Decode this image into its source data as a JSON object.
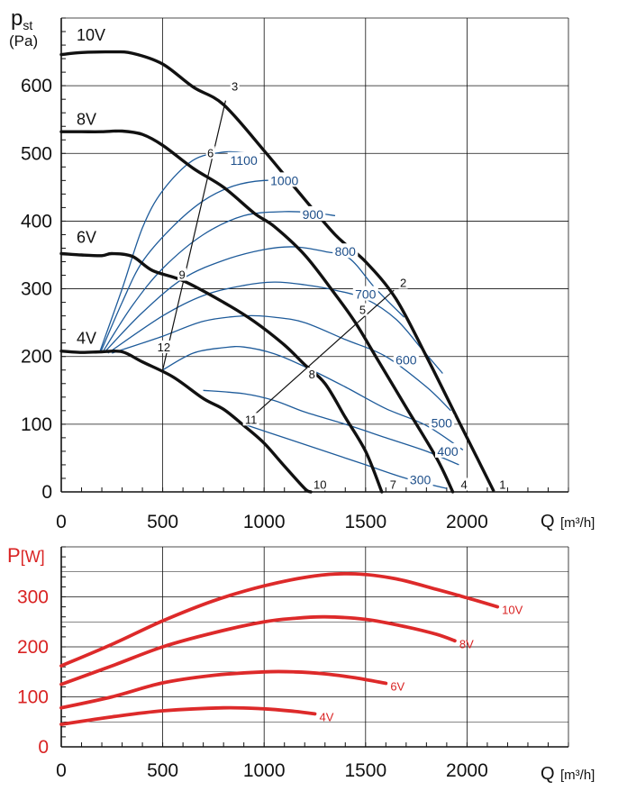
{
  "colors": {
    "fan": "#111111",
    "iso": "#1e5b9a",
    "power": "#dd2a2a",
    "power_text": "#d92323",
    "grid": "#111111"
  },
  "chart_data": [
    {
      "type": "line",
      "title": "",
      "ylabel_main": "p",
      "ylabel_sub": "st",
      "ylabel_unit": "(Pa)",
      "xlabel": "Q",
      "xlabel_unit": "[m³/h]",
      "xlim": [
        0,
        2500
      ],
      "ylim": [
        0,
        700
      ],
      "x_ticks": [
        0,
        500,
        1000,
        1500,
        2000
      ],
      "y_ticks": [
        0,
        100,
        200,
        300,
        400,
        500,
        600
      ],
      "grid": true,
      "fan_curves": [
        {
          "name": "10V",
          "points": [
            [
              0,
              646
            ],
            [
              100,
              649
            ],
            [
              250,
              650
            ],
            [
              350,
              648
            ],
            [
              500,
              632
            ],
            [
              650,
              598
            ],
            [
              800,
              572
            ],
            [
              1000,
              504
            ],
            [
              1150,
              450
            ],
            [
              1350,
              380
            ],
            [
              1500,
              340
            ],
            [
              1650,
              285
            ],
            [
              1800,
              200
            ],
            [
              1950,
              110
            ],
            [
              2050,
              50
            ],
            [
              2130,
              2
            ]
          ]
        },
        {
          "name": "8V",
          "points": [
            [
              0,
              532
            ],
            [
              100,
              532
            ],
            [
              200,
              532
            ],
            [
              300,
              533
            ],
            [
              400,
              528
            ],
            [
              500,
              512
            ],
            [
              650,
              478
            ],
            [
              800,
              450
            ],
            [
              950,
              412
            ],
            [
              1050,
              392
            ],
            [
              1200,
              350
            ],
            [
              1350,
              292
            ],
            [
              1450,
              250
            ],
            [
              1550,
              200
            ],
            [
              1700,
              125
            ],
            [
              1850,
              50
            ],
            [
              1930,
              0
            ]
          ]
        },
        {
          "name": "6V",
          "points": [
            [
              0,
              352
            ],
            [
              100,
              350
            ],
            [
              200,
              349
            ],
            [
              250,
              352
            ],
            [
              350,
              348
            ],
            [
              450,
              327
            ],
            [
              600,
              312
            ],
            [
              800,
              280
            ],
            [
              950,
              252
            ],
            [
              1100,
              217
            ],
            [
              1200,
              188
            ],
            [
              1300,
              160
            ],
            [
              1400,
              110
            ],
            [
              1500,
              60
            ],
            [
              1580,
              0
            ]
          ]
        },
        {
          "name": "4V",
          "points": [
            [
              0,
              208
            ],
            [
              100,
              206
            ],
            [
              200,
              207
            ],
            [
              300,
              207
            ],
            [
              400,
              192
            ],
            [
              550,
              170
            ],
            [
              700,
              138
            ],
            [
              800,
              122
            ],
            [
              900,
              98
            ],
            [
              1000,
              72
            ],
            [
              1100,
              38
            ],
            [
              1200,
              5
            ],
            [
              1230,
              0
            ]
          ]
        }
      ],
      "curve_labels": [
        "10V",
        "8V",
        "6V",
        "4V"
      ],
      "curve_label_anchors": [
        [
          40,
          675
        ],
        [
          40,
          550
        ],
        [
          40,
          376
        ],
        [
          40,
          227
        ]
      ],
      "point_labels": [
        {
          "label": "1",
          "x": 2140,
          "y": 2
        },
        {
          "label": "2",
          "x": 1650,
          "y": 300
        },
        {
          "label": "3",
          "x": 820,
          "y": 590
        },
        {
          "label": "4",
          "x": 1950,
          "y": 2
        },
        {
          "label": "5",
          "x": 1450,
          "y": 260
        },
        {
          "label": "6",
          "x": 700,
          "y": 492
        },
        {
          "label": "7",
          "x": 1600,
          "y": 2
        },
        {
          "label": "8",
          "x": 1200,
          "y": 165
        },
        {
          "label": "9",
          "x": 560,
          "y": 312
        },
        {
          "label": "10",
          "x": 1240,
          "y": 2
        },
        {
          "label": "11",
          "x": 900,
          "y": 98
        },
        {
          "label": "12",
          "x": 470,
          "y": 205
        }
      ],
      "system_lines": [
        {
          "points": [
            [
              500,
              180
            ],
            [
              810,
              578
            ]
          ]
        },
        {
          "points": [
            [
              900,
              100
            ],
            [
              1640,
              298
            ]
          ]
        }
      ],
      "rpm_curves": [
        {
          "label": "1100",
          "label_at": [
            900,
            490
          ],
          "points": [
            [
              190,
              207
            ],
            [
              300,
              300
            ],
            [
              400,
              390
            ],
            [
              500,
              445
            ],
            [
              650,
              490
            ],
            [
              800,
              502
            ],
            [
              900,
              501
            ]
          ]
        },
        {
          "label": "1000",
          "label_at": [
            1100,
            460
          ],
          "points": [
            [
              195,
              207
            ],
            [
              300,
              280
            ],
            [
              400,
              340
            ],
            [
              550,
              392
            ],
            [
              700,
              430
            ],
            [
              850,
              452
            ],
            [
              1000,
              460
            ],
            [
              1150,
              458
            ]
          ]
        },
        {
          "label": "900",
          "label_at": [
            1240,
            410
          ],
          "points": [
            [
              205,
              207
            ],
            [
              350,
              275
            ],
            [
              500,
              330
            ],
            [
              700,
              380
            ],
            [
              900,
              408
            ],
            [
              1100,
              414
            ],
            [
              1250,
              412
            ],
            [
              1350,
              408
            ]
          ]
        },
        {
          "label": "800",
          "label_at": [
            1400,
            355
          ],
          "points": [
            [
              215,
              207
            ],
            [
              400,
              265
            ],
            [
              600,
              315
            ],
            [
              800,
              342
            ],
            [
              1000,
              358
            ],
            [
              1150,
              362
            ],
            [
              1300,
              355
            ],
            [
              1420,
              345
            ],
            [
              1550,
              300
            ],
            [
              1690,
              258
            ]
          ]
        },
        {
          "label": "700",
          "label_at": [
            1500,
            292
          ],
          "points": [
            [
              230,
              205
            ],
            [
              500,
              260
            ],
            [
              700,
              290
            ],
            [
              900,
              305
            ],
            [
              1050,
              310
            ],
            [
              1200,
              306
            ],
            [
              1350,
              298
            ],
            [
              1500,
              285
            ],
            [
              1650,
              255
            ],
            [
              1780,
              210
            ],
            [
              1880,
              175
            ]
          ]
        },
        {
          "label": "600",
          "label_at": [
            1700,
            195
          ],
          "points": [
            [
              250,
              205
            ],
            [
              500,
              230
            ],
            [
              700,
              252
            ],
            [
              900,
              260
            ],
            [
              1050,
              258
            ],
            [
              1200,
              250
            ],
            [
              1400,
              225
            ],
            [
              1600,
              200
            ],
            [
              1800,
              155
            ],
            [
              1920,
              120
            ]
          ]
        },
        {
          "label": "500",
          "label_at": [
            1875,
            102
          ],
          "points": [
            [
              500,
              180
            ],
            [
              650,
              205
            ],
            [
              800,
              213
            ],
            [
              900,
              214
            ],
            [
              1050,
              204
            ],
            [
              1200,
              185
            ],
            [
              1400,
              155
            ],
            [
              1600,
              123
            ],
            [
              1800,
              98
            ],
            [
              1980,
              62
            ]
          ]
        },
        {
          "label": "400",
          "label_at": [
            1905,
            60
          ],
          "points": [
            [
              700,
              150
            ],
            [
              900,
              145
            ],
            [
              1050,
              135
            ],
            [
              1200,
              118
            ],
            [
              1400,
              100
            ],
            [
              1600,
              80
            ],
            [
              1800,
              60
            ],
            [
              1960,
              40
            ]
          ]
        },
        {
          "label": "300",
          "label_at": [
            1770,
            18
          ],
          "points": [
            [
              900,
              100
            ],
            [
              1100,
              80
            ],
            [
              1300,
              60
            ],
            [
              1500,
              40
            ],
            [
              1700,
              20
            ],
            [
              1900,
              5
            ]
          ]
        }
      ]
    },
    {
      "type": "line",
      "title": "",
      "ylabel_main": "P",
      "ylabel_unit": "[W]",
      "xlabel": "Q",
      "xlabel_unit": "[m³/h]",
      "xlim": [
        0,
        2500
      ],
      "ylim": [
        0,
        400
      ],
      "x_ticks": [
        0,
        500,
        1000,
        1500,
        2000
      ],
      "y_ticks": [
        0,
        100,
        200,
        300
      ],
      "grid": true,
      "series": [
        {
          "name": "10V",
          "points": [
            [
              0,
              162
            ],
            [
              250,
              205
            ],
            [
              500,
              252
            ],
            [
              750,
              292
            ],
            [
              1000,
              322
            ],
            [
              1250,
              342
            ],
            [
              1450,
              346
            ],
            [
              1650,
              336
            ],
            [
              1850,
              315
            ],
            [
              2000,
              298
            ],
            [
              2150,
              280
            ]
          ]
        },
        {
          "name": "8V",
          "points": [
            [
              0,
              125
            ],
            [
              250,
              162
            ],
            [
              500,
              200
            ],
            [
              750,
              228
            ],
            [
              1000,
              250
            ],
            [
              1150,
              257
            ],
            [
              1300,
              260
            ],
            [
              1500,
              255
            ],
            [
              1700,
              240
            ],
            [
              1850,
              225
            ],
            [
              1940,
              212
            ]
          ]
        },
        {
          "name": "6V",
          "points": [
            [
              0,
              78
            ],
            [
              250,
              100
            ],
            [
              500,
              128
            ],
            [
              750,
              143
            ],
            [
              1000,
              150
            ],
            [
              1150,
              150
            ],
            [
              1300,
              146
            ],
            [
              1450,
              138
            ],
            [
              1600,
              127
            ]
          ]
        },
        {
          "name": "4V",
          "points": [
            [
              0,
              45
            ],
            [
              250,
              60
            ],
            [
              500,
              72
            ],
            [
              800,
              78
            ],
            [
              1000,
              76
            ],
            [
              1150,
              71
            ],
            [
              1250,
              66
            ]
          ]
        }
      ],
      "legend_labels": [
        "10V",
        "8V",
        "6V",
        "4V"
      ]
    }
  ]
}
